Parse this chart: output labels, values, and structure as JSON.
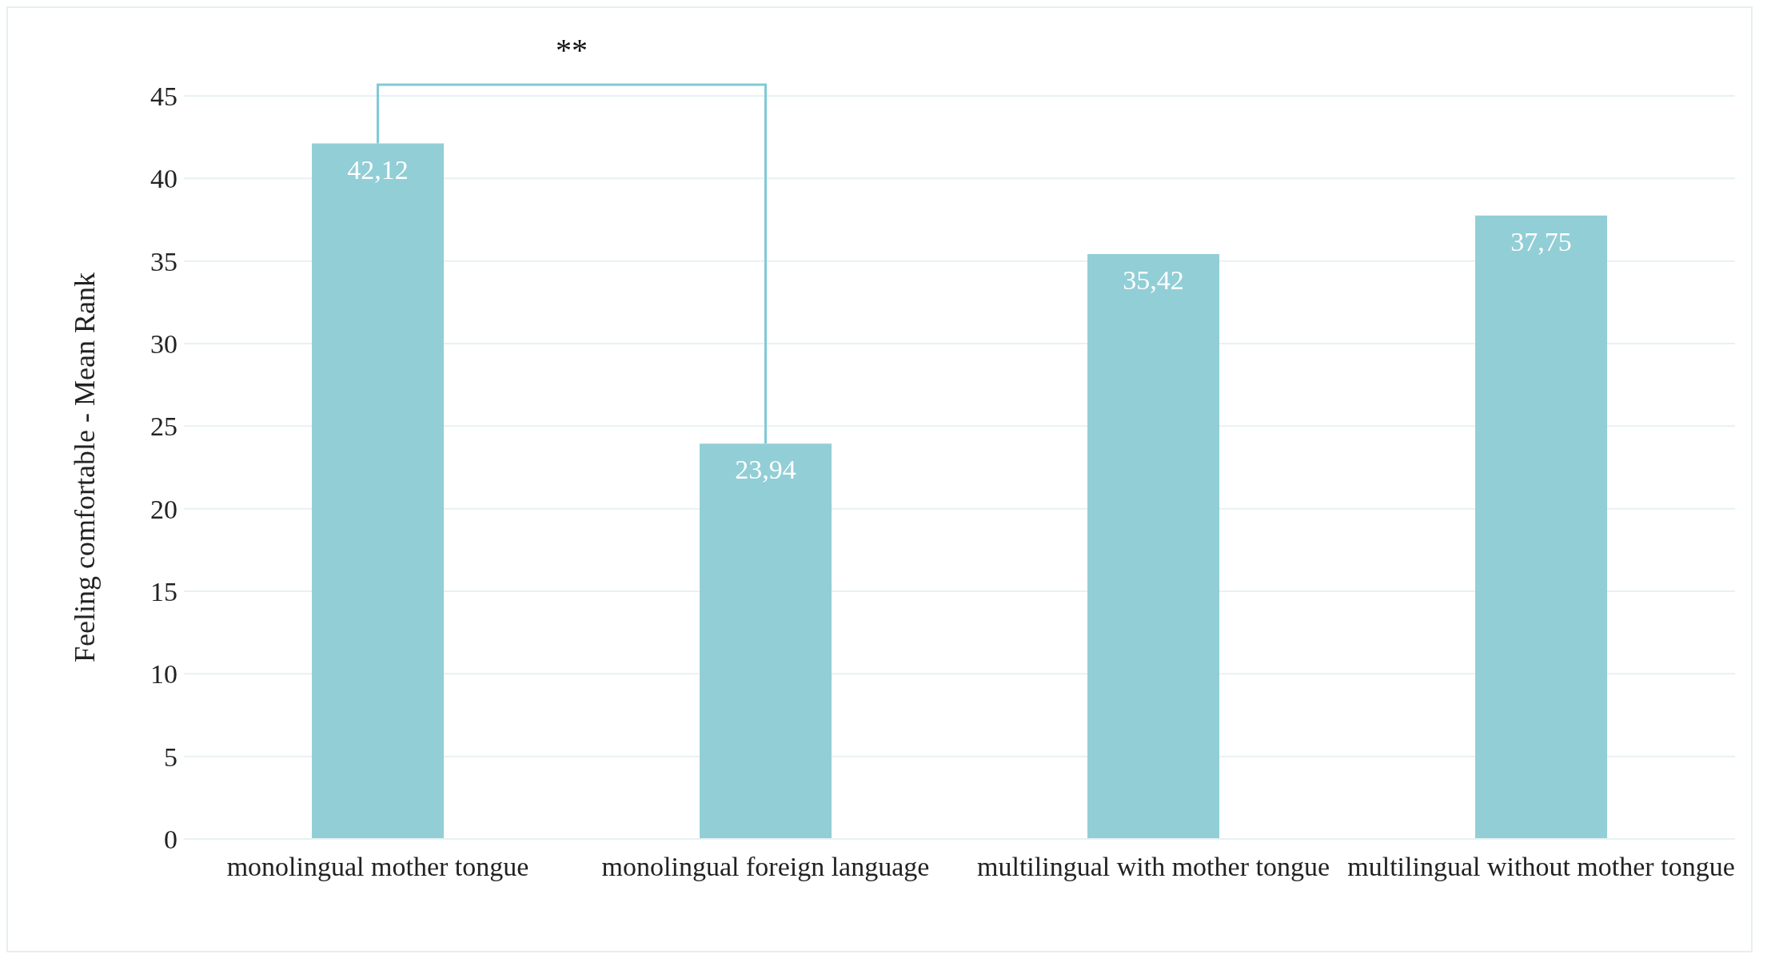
{
  "chart_data": {
    "type": "bar",
    "ylabel": "Feeling comfortable - Mean Rank",
    "categories": [
      "monolingual mother tongue",
      "monolingual foreign language",
      "multilingual with mother tongue",
      "multilingual without mother tongue"
    ],
    "values": [
      42.12,
      23.94,
      35.42,
      37.75
    ],
    "value_labels": [
      "42,12",
      "23,94",
      "35,42",
      "37,75"
    ],
    "color": "#92ced6",
    "ylim": [
      0,
      45
    ],
    "yticks": [
      0,
      5,
      10,
      15,
      20,
      25,
      30,
      35,
      40,
      45
    ],
    "grid": "y",
    "annotations": [
      "**"
    ]
  }
}
